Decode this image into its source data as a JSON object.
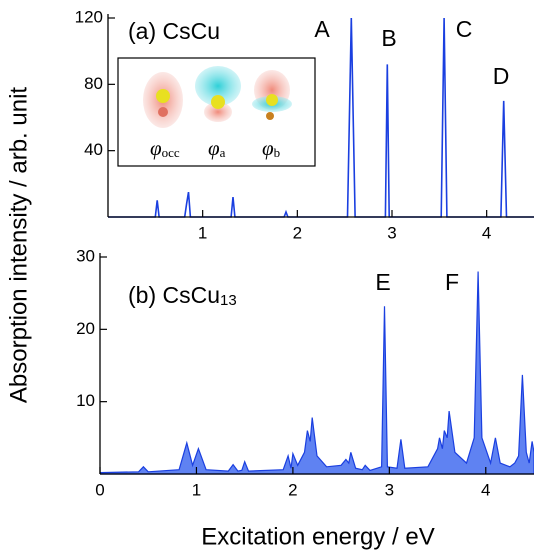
{
  "chart_data": [
    {
      "type": "line",
      "title": "(a) CsCu",
      "color": "#1a3fe0",
      "ylabel": "Absorption intensity / arb. unit",
      "xlim": [
        0,
        4.5
      ],
      "xticks": [
        1,
        2,
        3,
        4
      ],
      "ylim": [
        0,
        120
      ],
      "yticks": [
        40,
        80,
        120
      ],
      "annotations": [
        "A",
        "B",
        "C",
        "D"
      ],
      "inset_labels": [
        {
          "symbol": "φ",
          "sub": "occ"
        },
        {
          "symbol": "φ",
          "sub": "a"
        },
        {
          "symbol": "φ",
          "sub": "b"
        }
      ],
      "x": [
        0,
        0.5,
        0.52,
        0.54,
        0.81,
        0.83,
        0.85,
        0.87,
        1.3,
        1.32,
        1.34,
        1.86,
        1.88,
        1.9,
        2.53,
        2.57,
        2.61,
        2.93,
        2.95,
        2.97,
        3.52,
        3.55,
        3.58,
        4.15,
        4.18,
        4.21,
        4.5
      ],
      "values": [
        0,
        0,
        10,
        0,
        0,
        8,
        15,
        0,
        0,
        12,
        0,
        0,
        3,
        0,
        0,
        120,
        0,
        0,
        92,
        0,
        0,
        120,
        0,
        0,
        70,
        0,
        0
      ]
    },
    {
      "type": "area",
      "title": "(b) CsCu",
      "title_sub": "13",
      "color": "#1a3fe0",
      "fill": "#5f82f2",
      "xlabel": "Excitation energy / eV",
      "xlim": [
        0,
        4.5
      ],
      "xticks": [
        0,
        1,
        2,
        3,
        4
      ],
      "ylim": [
        0,
        30
      ],
      "yticks": [
        10,
        20,
        30
      ],
      "annotations": [
        "E",
        "F"
      ],
      "x": [
        0,
        0.4,
        0.45,
        0.5,
        0.82,
        0.9,
        0.96,
        1.02,
        1.1,
        1.33,
        1.38,
        1.43,
        1.47,
        1.5,
        1.54,
        1.9,
        1.95,
        1.98,
        2.0,
        2.05,
        2.12,
        2.15,
        2.18,
        2.2,
        2.25,
        2.35,
        2.5,
        2.55,
        2.58,
        2.6,
        2.65,
        2.72,
        2.75,
        2.8,
        2.92,
        2.95,
        2.98,
        3.08,
        3.12,
        3.16,
        3.4,
        3.5,
        3.52,
        3.55,
        3.57,
        3.6,
        3.62,
        3.68,
        3.8,
        3.88,
        3.92,
        3.96,
        4.05,
        4.1,
        4.15,
        4.25,
        4.3,
        4.34,
        4.38,
        4.42,
        4.45,
        4.48,
        4.5
      ],
      "values": [
        0.2,
        0.3,
        1,
        0.3,
        0.6,
        4.3,
        1.2,
        3.5,
        0.6,
        0.4,
        1.3,
        0.4,
        0.5,
        1.7,
        0.4,
        0.6,
        2.5,
        0.8,
        2.8,
        1.2,
        3,
        6,
        4.5,
        7.8,
        2.5,
        1,
        1.2,
        2,
        1.5,
        3,
        0.8,
        0.6,
        1.2,
        0.5,
        1,
        23.2,
        1,
        0.8,
        4.8,
        0.8,
        1,
        3.5,
        5,
        3.5,
        6,
        5,
        8.7,
        3,
        1.5,
        5,
        28,
        5,
        1.5,
        5,
        1.5,
        1,
        1.5,
        2.5,
        13.7,
        3,
        1.5,
        4.5,
        3
      ]
    }
  ]
}
